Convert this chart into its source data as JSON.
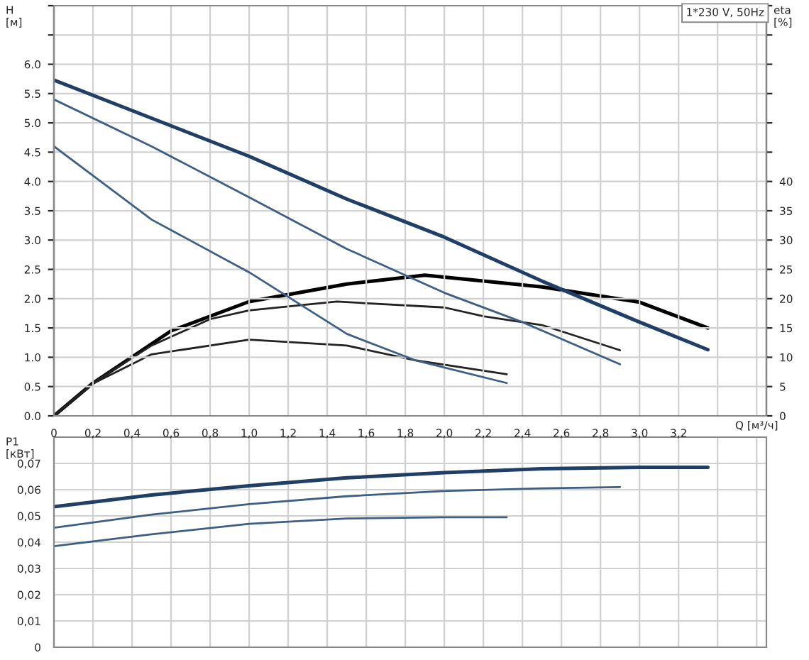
{
  "chart_data": [
    {
      "type": "line",
      "xlabel": "Q [м³/ч]",
      "ylabel": "H\n[м]",
      "y2label": "eta\n[%]",
      "annotations": [
        "1*230 V, 50Hz"
      ],
      "grid": true,
      "marker": "none",
      "line_style": "solid",
      "xlim": [
        0,
        3.65
      ],
      "ylim": [
        0,
        7
      ],
      "y2lim": [
        0,
        70
      ],
      "xticks": [
        {
          "value": 0,
          "label": "0"
        },
        {
          "value": 0.2,
          "label": "0,2"
        },
        {
          "value": 0.4,
          "label": "0,4"
        },
        {
          "value": 0.6,
          "label": "0,6"
        },
        {
          "value": 0.8,
          "label": "0,8"
        },
        {
          "value": 1.0,
          "label": "1,0"
        },
        {
          "value": 1.2,
          "label": "1,2"
        },
        {
          "value": 1.4,
          "label": "1,4"
        },
        {
          "value": 1.6,
          "label": "1,6"
        },
        {
          "value": 1.8,
          "label": "1,8"
        },
        {
          "value": 2.0,
          "label": "2,0"
        },
        {
          "value": 2.2,
          "label": "2,2"
        },
        {
          "value": 2.4,
          "label": "2,4"
        },
        {
          "value": 2.6,
          "label": "2,6"
        },
        {
          "value": 2.8,
          "label": "2,8"
        },
        {
          "value": 3.0,
          "label": "3,0"
        },
        {
          "value": 3.2,
          "label": "3,2"
        },
        {
          "value": 3.4,
          "label": null
        },
        {
          "value": 3.6,
          "label": null
        }
      ],
      "yticks": [
        {
          "value": 0,
          "label": "0.0"
        },
        {
          "value": 0.5,
          "label": "0.5"
        },
        {
          "value": 1,
          "label": "1.0"
        },
        {
          "value": 1.5,
          "label": "1.5"
        },
        {
          "value": 2,
          "label": "2.0"
        },
        {
          "value": 2.5,
          "label": "2.5"
        },
        {
          "value": 3,
          "label": "3.0"
        },
        {
          "value": 3.5,
          "label": "3.5"
        },
        {
          "value": 4,
          "label": "4.0"
        },
        {
          "value": 4.5,
          "label": "4.5"
        },
        {
          "value": 5,
          "label": "5.0"
        },
        {
          "value": 5.5,
          "label": "5.5"
        },
        {
          "value": 6,
          "label": "6.0"
        },
        {
          "value": 6.5,
          "label": null
        },
        {
          "value": 7,
          "label": null
        }
      ],
      "y2ticks": [
        0,
        5,
        10,
        15,
        20,
        25,
        30,
        35,
        40,
        {
          "value": 45,
          "label": null
        },
        {
          "value": 50,
          "label": null
        },
        {
          "value": 55,
          "label": null
        },
        {
          "value": 60,
          "label": null
        },
        {
          "value": 65,
          "label": null
        },
        {
          "value": 70,
          "label": null
        }
      ],
      "series": [
        {
          "color": "#1f3f66",
          "x": [
            0,
            0.5,
            1.0,
            1.5,
            2.0,
            2.5,
            3.0,
            3.35
          ],
          "values": [
            5.73,
            5.08,
            4.43,
            3.7,
            3.05,
            2.3,
            1.6,
            1.13
          ]
        },
        {
          "color": "#3d5f86",
          "x": [
            0,
            0.5,
            1.0,
            1.5,
            2.0,
            2.4,
            2.9
          ],
          "values": [
            5.4,
            4.6,
            3.73,
            2.85,
            2.1,
            1.6,
            0.88
          ]
        },
        {
          "color": "#3d5f86",
          "x": [
            0,
            0.5,
            1.0,
            1.5,
            1.85,
            2.32
          ],
          "values": [
            4.6,
            3.35,
            2.45,
            1.4,
            0.95,
            0.56
          ]
        },
        {
          "color": "#000000",
          "axis": "y2",
          "x": [
            0,
            0.2,
            0.6,
            1.0,
            1.5,
            1.9,
            2.5,
            3.0,
            3.35
          ],
          "values": [
            0,
            5.6,
            14.5,
            19.5,
            22.5,
            24,
            22,
            19.4,
            15
          ]
        },
        {
          "color": "#222222",
          "axis": "y2",
          "x": [
            0,
            0.2,
            0.5,
            0.8,
            1.0,
            1.45,
            2.0,
            2.2,
            2.5,
            2.9
          ],
          "values": [
            0,
            5.6,
            12,
            16.5,
            18,
            19.5,
            18.5,
            17,
            15.5,
            11.2
          ]
        },
        {
          "color": "#222222",
          "axis": "y2",
          "x": [
            0,
            0.2,
            0.5,
            1.0,
            1.5,
            1.85,
            2.32
          ],
          "values": [
            0,
            5.5,
            10.5,
            13,
            12,
            9.5,
            7.1
          ]
        }
      ]
    },
    {
      "type": "line",
      "ylabel": "P1\n[кВт]",
      "grid": true,
      "marker": "none",
      "line_style": "solid",
      "tick_labels": "y",
      "xlim": [
        0,
        3.65
      ],
      "ylim": [
        0,
        0.08
      ],
      "xticks": [
        0,
        0.2,
        0.4,
        0.6,
        0.8,
        1.0,
        1.2,
        1.4,
        1.6,
        1.8,
        2.0,
        2.2,
        2.4,
        2.6,
        2.8,
        3.0,
        3.2,
        3.4,
        3.6
      ],
      "yticks": [
        {
          "value": 0,
          "label": "0"
        },
        {
          "value": 0.01,
          "label": "0,01"
        },
        {
          "value": 0.02,
          "label": "0,02"
        },
        {
          "value": 0.03,
          "label": "0,03"
        },
        {
          "value": 0.04,
          "label": "0,04"
        },
        {
          "value": 0.05,
          "label": "0,05"
        },
        {
          "value": 0.06,
          "label": "0,06"
        },
        {
          "value": 0.07,
          "label": "0,07"
        },
        {
          "value": 0.08,
          "label": null
        }
      ],
      "series": [
        {
          "color": "#1f3f66",
          "x": [
            0,
            0.5,
            1.0,
            1.5,
            2.0,
            2.5,
            3.0,
            3.35
          ],
          "values": [
            0.0535,
            0.058,
            0.0615,
            0.0645,
            0.0665,
            0.068,
            0.0685,
            0.0685
          ]
        },
        {
          "color": "#3d5f86",
          "x": [
            0,
            0.5,
            1.0,
            1.5,
            2.0,
            2.5,
            2.9
          ],
          "values": [
            0.0455,
            0.0505,
            0.0545,
            0.0575,
            0.0595,
            0.0605,
            0.061
          ]
        },
        {
          "color": "#3d5f86",
          "x": [
            0,
            0.5,
            1.0,
            1.5,
            2.0,
            2.32
          ],
          "values": [
            0.0385,
            0.043,
            0.047,
            0.049,
            0.0495,
            0.0495
          ]
        }
      ]
    }
  ]
}
